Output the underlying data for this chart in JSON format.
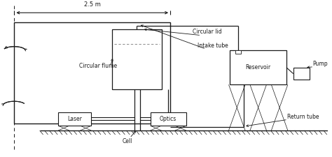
{
  "bg_color": "#ffffff",
  "line_color": "#1a1a1a",
  "text_color": "#1a1a1a",
  "dim_label": "2.5 m",
  "labels": {
    "circular_lid": "Circular lid",
    "circular_flume": "Circular flume",
    "intake_tube": "Intake tube",
    "laser": "Laser",
    "optics": "Optics",
    "cell": "Cell",
    "reservoir": "Reservoir",
    "pump": "Pump",
    "return_tube": "Return tube"
  }
}
